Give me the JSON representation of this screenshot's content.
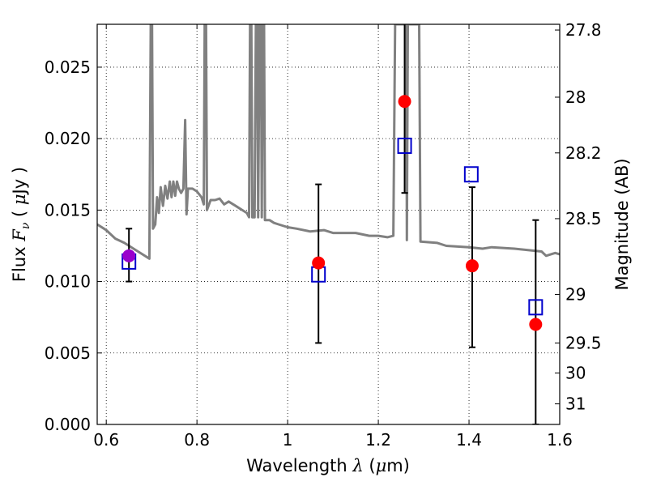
{
  "chart_data": {
    "type": "scatter",
    "xlabel": "Wavelength  λ (μm)",
    "ylabel": "Flux  Fν  ( μJy )",
    "y2label": "Magnitude (AB)",
    "xlim": [
      0.58,
      1.6
    ],
    "ylim": [
      0.0,
      0.028
    ],
    "grid": true,
    "x_ticks": [
      {
        "value": 0.6,
        "label": "0.6"
      },
      {
        "value": 0.8,
        "label": "0.8"
      },
      {
        "value": 1.0,
        "label": "1"
      },
      {
        "value": 1.2,
        "label": "1.2"
      },
      {
        "value": 1.4,
        "label": "1.4"
      },
      {
        "value": 1.6,
        "label": "1.6"
      }
    ],
    "y_ticks": [
      {
        "value": 0.0,
        "label": "0.000"
      },
      {
        "value": 0.005,
        "label": "0.005"
      },
      {
        "value": 0.01,
        "label": "0.010"
      },
      {
        "value": 0.015,
        "label": "0.015"
      },
      {
        "value": 0.02,
        "label": "0.020"
      },
      {
        "value": 0.025,
        "label": "0.025"
      }
    ],
    "y2_ticks": [
      {
        "flux": 0.0276,
        "label": "27.8"
      },
      {
        "flux": 0.0229,
        "label": "28"
      },
      {
        "flux": 0.019,
        "label": "28.2"
      },
      {
        "flux": 0.0144,
        "label": "28.5"
      },
      {
        "flux": 0.0091,
        "label": "29"
      },
      {
        "flux": 0.0057,
        "label": "29.5"
      },
      {
        "flux": 0.0036,
        "label": "30"
      },
      {
        "flux": 0.00144,
        "label": "31"
      }
    ],
    "model_spectrum": {
      "color": "#808080",
      "points": [
        [
          0.58,
          0.014
        ],
        [
          0.6,
          0.0136
        ],
        [
          0.62,
          0.013
        ],
        [
          0.64,
          0.0127
        ],
        [
          0.66,
          0.0123
        ],
        [
          0.68,
          0.0119
        ],
        [
          0.695,
          0.0116
        ],
        [
          0.698,
          0.028
        ],
        [
          0.701,
          0.028
        ],
        [
          0.703,
          0.0137
        ],
        [
          0.708,
          0.014
        ],
        [
          0.712,
          0.0159
        ],
        [
          0.716,
          0.0148
        ],
        [
          0.72,
          0.0166
        ],
        [
          0.725,
          0.0153
        ],
        [
          0.73,
          0.0167
        ],
        [
          0.735,
          0.0158
        ],
        [
          0.74,
          0.017
        ],
        [
          0.744,
          0.0159
        ],
        [
          0.748,
          0.017
        ],
        [
          0.752,
          0.016
        ],
        [
          0.756,
          0.017
        ],
        [
          0.76,
          0.0165
        ],
        [
          0.765,
          0.0162
        ],
        [
          0.77,
          0.0165
        ],
        [
          0.774,
          0.0213
        ],
        [
          0.777,
          0.0147
        ],
        [
          0.78,
          0.0165
        ],
        [
          0.79,
          0.0165
        ],
        [
          0.8,
          0.0163
        ],
        [
          0.81,
          0.0159
        ],
        [
          0.815,
          0.0154
        ],
        [
          0.817,
          0.028
        ],
        [
          0.82,
          0.028
        ],
        [
          0.822,
          0.015
        ],
        [
          0.83,
          0.0157
        ],
        [
          0.84,
          0.0157
        ],
        [
          0.85,
          0.0158
        ],
        [
          0.86,
          0.0154
        ],
        [
          0.87,
          0.0156
        ],
        [
          0.88,
          0.0154
        ],
        [
          0.89,
          0.0152
        ],
        [
          0.9,
          0.015
        ],
        [
          0.91,
          0.0148
        ],
        [
          0.915,
          0.0145
        ],
        [
          0.917,
          0.028
        ],
        [
          0.92,
          0.028
        ],
        [
          0.922,
          0.0145
        ],
        [
          0.927,
          0.0145
        ],
        [
          0.93,
          0.028
        ],
        [
          0.933,
          0.028
        ],
        [
          0.935,
          0.0145
        ],
        [
          0.938,
          0.028
        ],
        [
          0.941,
          0.028
        ],
        [
          0.943,
          0.0145
        ],
        [
          0.945,
          0.028
        ],
        [
          0.948,
          0.028
        ],
        [
          0.95,
          0.0143
        ],
        [
          0.96,
          0.0143
        ],
        [
          0.97,
          0.0141
        ],
        [
          0.98,
          0.014
        ],
        [
          1.0,
          0.0138
        ],
        [
          1.02,
          0.0137
        ],
        [
          1.05,
          0.0135
        ],
        [
          1.08,
          0.0136
        ],
        [
          1.1,
          0.0134
        ],
        [
          1.15,
          0.0134
        ],
        [
          1.18,
          0.0132
        ],
        [
          1.2,
          0.0132
        ],
        [
          1.22,
          0.0131
        ],
        [
          1.233,
          0.0132
        ],
        [
          1.237,
          0.028
        ],
        [
          1.262,
          0.028
        ],
        [
          1.263,
          0.0129
        ],
        [
          1.265,
          0.028
        ],
        [
          1.29,
          0.028
        ],
        [
          1.293,
          0.0128
        ],
        [
          1.33,
          0.0127
        ],
        [
          1.35,
          0.0125
        ],
        [
          1.4,
          0.0124
        ],
        [
          1.43,
          0.0123
        ],
        [
          1.45,
          0.0124
        ],
        [
          1.5,
          0.0123
        ],
        [
          1.53,
          0.0122
        ],
        [
          1.56,
          0.0121
        ],
        [
          1.57,
          0.0118
        ],
        [
          1.59,
          0.012
        ],
        [
          1.6,
          0.0119
        ],
        [
          1.61,
          0.0121
        ]
      ]
    },
    "observed": {
      "color": "#ff0000",
      "points": [
        {
          "x": 1.068,
          "y": 0.0113,
          "err_low": 0.0057,
          "err_high": 0.0168
        },
        {
          "x": 1.258,
          "y": 0.0226,
          "err_low": 0.0162,
          "err_high": 0.029
        },
        {
          "x": 1.407,
          "y": 0.0111,
          "err_low": 0.0054,
          "err_high": 0.0166
        },
        {
          "x": 1.547,
          "y": 0.007,
          "err_low": 0.0,
          "err_high": 0.0143
        }
      ]
    },
    "observed_optical": {
      "color": "#9900cc",
      "points": [
        {
          "x": 0.65,
          "y": 0.0118,
          "err_low": 0.01,
          "err_high": 0.0137
        }
      ]
    },
    "model_bandpass": {
      "color": "#0000cc",
      "points": [
        {
          "x": 0.65,
          "y": 0.0114
        },
        {
          "x": 1.068,
          "y": 0.0105
        },
        {
          "x": 1.258,
          "y": 0.0195
        },
        {
          "x": 1.405,
          "y": 0.0175
        },
        {
          "x": 1.547,
          "y": 0.0082
        }
      ]
    }
  }
}
